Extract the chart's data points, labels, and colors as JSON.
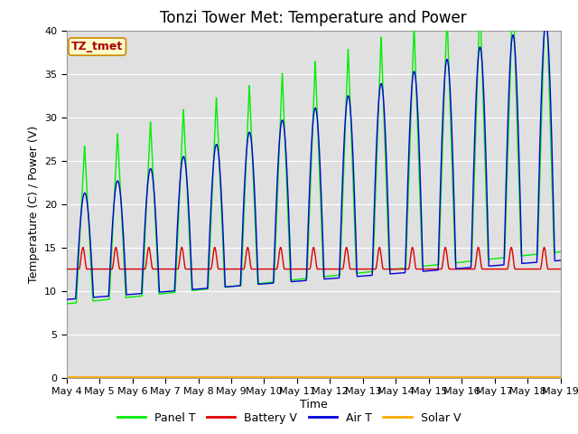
{
  "title": "Tonzi Tower Met: Temperature and Power",
  "ylabel": "Temperature (C) / Power (V)",
  "xlabel": "Time",
  "label_box_text": "TZ_tmet",
  "ylim": [
    0,
    40
  ],
  "xlim": [
    0,
    15
  ],
  "yticks": [
    0,
    5,
    10,
    15,
    20,
    25,
    30,
    35,
    40
  ],
  "xtick_labels": [
    "May 4",
    "May 5",
    "May 6",
    "May 7",
    "May 8",
    "May 9",
    "May 10",
    "May 11",
    "May 12",
    "May 13",
    "May 14",
    "May 15",
    "May 16",
    "May 17",
    "May 18",
    "May 19"
  ],
  "bg_color": "#e0e0e0",
  "fig_bg_color": "#ffffff",
  "grid_color": "#ffffff",
  "panel_t_color": "#00ee00",
  "battery_v_color": "#dd0000",
  "air_t_color": "#0000dd",
  "solar_v_color": "#ffaa00",
  "title_fontsize": 12,
  "axis_label_fontsize": 9,
  "tick_fontsize": 8,
  "legend_fontsize": 9,
  "lw": 1.0
}
